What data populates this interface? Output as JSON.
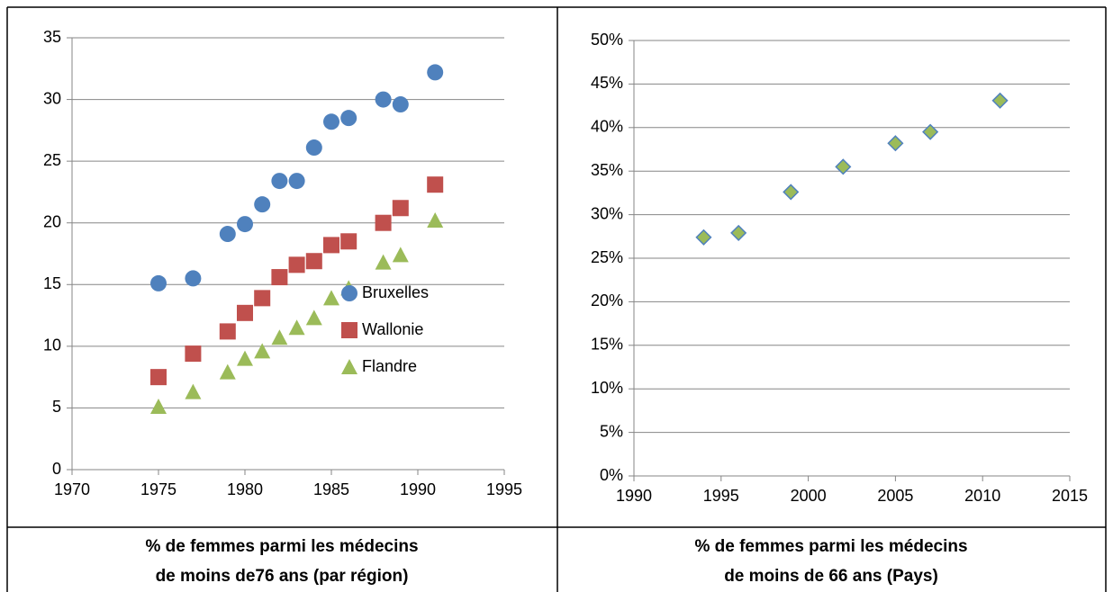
{
  "chart_data": [
    {
      "type": "scatter",
      "title": [
        "% de femmes parmi les médecins",
        "de moins de76 ans (par région)"
      ],
      "x": [
        1975,
        1977,
        1979,
        1980,
        1981,
        1982,
        1983,
        1984,
        1985,
        1986,
        1988,
        1989,
        1991
      ],
      "series": [
        {
          "name": "Bruxelles",
          "color": "#4f81bd",
          "marker": "circle",
          "values": [
            15.1,
            15.5,
            19.1,
            19.9,
            21.5,
            23.4,
            23.4,
            26.1,
            28.2,
            28.5,
            30.0,
            29.6,
            32.2
          ]
        },
        {
          "name": "Wallonie",
          "color": "#c0504d",
          "marker": "square",
          "values": [
            7.5,
            9.4,
            11.2,
            12.7,
            13.9,
            15.6,
            16.6,
            16.9,
            18.2,
            18.5,
            20.0,
            21.2,
            23.1
          ]
        },
        {
          "name": "Flandre",
          "color": "#9bbb59",
          "marker": "triangle",
          "values": [
            5.1,
            6.3,
            7.9,
            9.0,
            9.6,
            10.7,
            11.5,
            12.3,
            13.9,
            14.7,
            16.8,
            17.4,
            20.2
          ]
        }
      ],
      "xlim": [
        1970,
        1995
      ],
      "xticks": [
        1970,
        1975,
        1980,
        1985,
        1990,
        1995
      ],
      "ylim": [
        0,
        35
      ],
      "yticks": [
        0,
        5,
        10,
        15,
        20,
        25,
        30,
        35
      ],
      "grid": true,
      "legend": "lower right"
    },
    {
      "type": "scatter",
      "title": [
        "% de femmes parmi les médecins",
        "de moins de 66 ans (Pays)"
      ],
      "x": [
        1994,
        1996,
        1999,
        2002,
        2005,
        2007,
        2011
      ],
      "series": [
        {
          "color": "#9bbb59",
          "marker": "diamond",
          "values": [
            27.4,
            27.9,
            32.6,
            35.5,
            38.2,
            39.5,
            43.1
          ]
        }
      ],
      "xlim": [
        1990,
        2015
      ],
      "xticks": [
        1990,
        1995,
        2000,
        2005,
        2010,
        2015
      ],
      "ylim": [
        0,
        50
      ],
      "yticks": [
        {
          "value": 0,
          "label": "0%"
        },
        {
          "value": 5,
          "label": "5%"
        },
        {
          "value": 10,
          "label": "10%"
        },
        {
          "value": 15,
          "label": "15%"
        },
        {
          "value": 20,
          "label": "20%"
        },
        {
          "value": 25,
          "label": "25%"
        },
        {
          "value": 30,
          "label": "30%"
        },
        {
          "value": 35,
          "label": "35%"
        },
        {
          "value": 40,
          "label": "40%"
        },
        {
          "value": 45,
          "label": "45%"
        },
        {
          "value": 50,
          "label": "50%"
        }
      ],
      "grid": true
    }
  ]
}
